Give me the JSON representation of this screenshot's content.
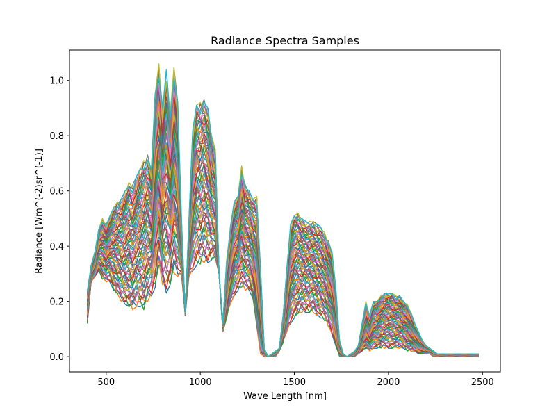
{
  "chart_data": {
    "type": "line",
    "title": "Radiance Spectra Samples",
    "xlabel": "Wave Length [nm]",
    "ylabel": "Radiance [Wm^(-2)sr^(-1)]",
    "xlim": [
      305,
      2595
    ],
    "ylim": [
      -0.055,
      1.11
    ],
    "xticks": [
      500,
      1000,
      1500,
      2000,
      2500
    ],
    "yticks": [
      0.0,
      0.2,
      0.4,
      0.6,
      0.8,
      1.0
    ],
    "xtick_labels": [
      "500",
      "1000",
      "1500",
      "2000",
      "2500"
    ],
    "ytick_labels": [
      "0.0",
      "0.2",
      "0.4",
      "0.6",
      "0.8",
      "1.0"
    ],
    "grid": false,
    "legend": "none",
    "series_count": 60,
    "series_colors": [
      "#1f77b4",
      "#ff7f0e",
      "#2ca02c",
      "#d62728",
      "#9467bd",
      "#8c564b",
      "#e377c2",
      "#7f7f7f",
      "#bcbd22",
      "#17becf"
    ],
    "envelope": {
      "x": [
        400,
        420,
        440,
        460,
        480,
        500,
        520,
        540,
        560,
        580,
        600,
        620,
        640,
        660,
        680,
        700,
        720,
        740,
        760,
        780,
        800,
        820,
        840,
        860,
        880,
        900,
        920,
        940,
        960,
        980,
        1000,
        1020,
        1040,
        1060,
        1080,
        1100,
        1120,
        1140,
        1160,
        1180,
        1200,
        1220,
        1240,
        1260,
        1280,
        1300,
        1320,
        1340,
        1360,
        1380,
        1400,
        1420,
        1440,
        1460,
        1480,
        1500,
        1520,
        1540,
        1560,
        1580,
        1600,
        1620,
        1640,
        1660,
        1680,
        1700,
        1720,
        1740,
        1760,
        1780,
        1800,
        1820,
        1840,
        1860,
        1880,
        1900,
        1920,
        1940,
        1960,
        1980,
        2000,
        2020,
        2040,
        2060,
        2080,
        2100,
        2120,
        2140,
        2160,
        2180,
        2200,
        2220,
        2240,
        2260,
        2280,
        2300,
        2320,
        2340,
        2360,
        2380,
        2400,
        2420,
        2440,
        2460,
        2480,
        2500
      ],
      "max": [
        0.24,
        0.33,
        0.38,
        0.46,
        0.5,
        0.48,
        0.51,
        0.54,
        0.56,
        0.57,
        0.6,
        0.63,
        0.62,
        0.65,
        0.68,
        0.71,
        0.73,
        0.68,
        0.95,
        1.06,
        0.9,
        1.04,
        0.88,
        1.05,
        0.92,
        0.5,
        0.16,
        0.5,
        0.82,
        0.91,
        0.92,
        0.93,
        0.9,
        0.8,
        0.75,
        0.3,
        0.12,
        0.35,
        0.47,
        0.56,
        0.58,
        0.69,
        0.62,
        0.6,
        0.57,
        0.58,
        0.32,
        0.03,
        0.0,
        0.01,
        0.02,
        0.03,
        0.15,
        0.32,
        0.48,
        0.51,
        0.52,
        0.5,
        0.49,
        0.49,
        0.49,
        0.48,
        0.47,
        0.45,
        0.42,
        0.38,
        0.25,
        0.06,
        0.01,
        0.0,
        0.01,
        0.02,
        0.04,
        0.12,
        0.2,
        0.15,
        0.2,
        0.2,
        0.22,
        0.23,
        0.23,
        0.23,
        0.22,
        0.22,
        0.2,
        0.19,
        0.16,
        0.12,
        0.09,
        0.06,
        0.04,
        0.03,
        0.02,
        0.01,
        0.01,
        0.01,
        0.01,
        0.01,
        0.01,
        0.01,
        0.01,
        0.01,
        0.01,
        0.01,
        0.01
      ],
      "min": [
        0.12,
        0.27,
        0.29,
        0.31,
        0.28,
        0.27,
        0.27,
        0.24,
        0.22,
        0.2,
        0.19,
        0.18,
        0.17,
        0.18,
        0.18,
        0.17,
        0.2,
        0.22,
        0.25,
        0.32,
        0.26,
        0.23,
        0.26,
        0.3,
        0.29,
        0.3,
        0.15,
        0.29,
        0.31,
        0.33,
        0.33,
        0.34,
        0.34,
        0.35,
        0.35,
        0.3,
        0.09,
        0.14,
        0.19,
        0.22,
        0.24,
        0.25,
        0.24,
        0.24,
        0.21,
        0.1,
        0.01,
        0.0,
        0.0,
        0.0,
        0.0,
        0.02,
        0.05,
        0.09,
        0.12,
        0.14,
        0.15,
        0.16,
        0.16,
        0.16,
        0.16,
        0.15,
        0.14,
        0.13,
        0.11,
        0.08,
        0.04,
        0.0,
        0.0,
        0.0,
        0.0,
        0.0,
        0.01,
        0.02,
        0.03,
        0.02,
        0.03,
        0.03,
        0.03,
        0.03,
        0.03,
        0.03,
        0.03,
        0.03,
        0.03,
        0.02,
        0.02,
        0.02,
        0.01,
        0.01,
        0.01,
        0.01,
        0.0,
        0.0,
        0.0,
        0.0,
        0.0,
        0.0,
        0.0,
        0.0,
        0.0,
        0.0,
        0.0,
        0.0,
        0.0
      ]
    }
  }
}
